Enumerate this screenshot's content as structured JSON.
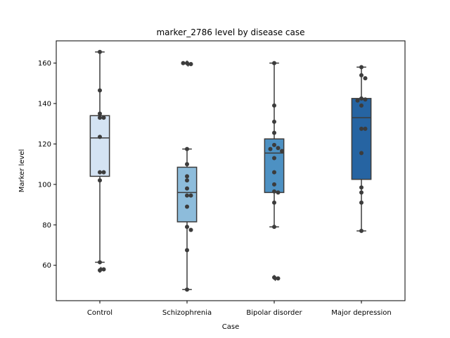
{
  "chart_data": {
    "type": "box",
    "title": "marker_2786 level by disease case",
    "xlabel": "Case",
    "ylabel": "Marker level",
    "categories": [
      "Control",
      "Schizophrenia",
      "Bipolar disorder",
      "Major depression"
    ],
    "ylim": [
      42.5,
      171
    ],
    "yticks": [
      60,
      80,
      100,
      120,
      140,
      160
    ],
    "grid": false,
    "boxes": [
      {
        "category": "Control",
        "q1": 104,
        "median": 123,
        "q3": 134,
        "whisker_low": 61.5,
        "whisker_high": 165.5,
        "outliers": [
          57.5,
          58
        ]
      },
      {
        "category": "Schizophrenia",
        "q1": 81.5,
        "median": 96,
        "q3": 108.5,
        "whisker_low": 48,
        "whisker_high": 117.5,
        "outliers": [
          160,
          159.5,
          160
        ]
      },
      {
        "category": "Bipolar disorder",
        "q1": 96,
        "median": 115.5,
        "q3": 122.5,
        "whisker_low": 79,
        "whisker_high": 160,
        "outliers": [
          54,
          53.5
        ]
      },
      {
        "category": "Major depression",
        "q1": 102.5,
        "median": 133,
        "q3": 142.5,
        "whisker_low": 77,
        "whisker_high": 158,
        "outliers": []
      }
    ],
    "points": [
      {
        "category": "Control",
        "values": [
          165.5,
          146.5,
          135,
          133,
          133,
          123.5,
          106,
          106,
          102,
          61.5,
          57.5,
          58
        ]
      },
      {
        "category": "Schizophrenia",
        "values": [
          160,
          159.5,
          160,
          117.5,
          110,
          104,
          102,
          98,
          94.5,
          94.5,
          89,
          79,
          77.5,
          67.5,
          48
        ]
      },
      {
        "category": "Bipolar disorder",
        "values": [
          160,
          139,
          131,
          125.5,
          119.5,
          118,
          117.5,
          116.5,
          113,
          106,
          100,
          96.5,
          96,
          91,
          79,
          54,
          53.5
        ]
      },
      {
        "category": "Major depression",
        "values": [
          158,
          154,
          152.5,
          142.5,
          142,
          141.5,
          139,
          127.5,
          127.5,
          115.5,
          98.5,
          96,
          91,
          77
        ]
      }
    ],
    "colors": {
      "boxes": [
        "#d4e3f3",
        "#8dbcdb",
        "#4d91c3",
        "#2664a2"
      ],
      "lines": "#3c3c3c",
      "points": "#3c3c3c"
    }
  }
}
